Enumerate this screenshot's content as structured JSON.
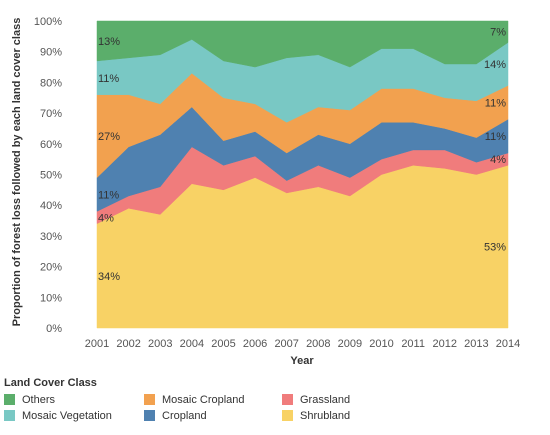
{
  "chart_data": {
    "type": "area",
    "stacked": true,
    "xlabel": "Year",
    "ylabel": "Proportion of forest loss followed by each land cover class",
    "ylim": [
      0,
      100
    ],
    "yticks": [
      "0%",
      "10%",
      "20%",
      "30%",
      "40%",
      "50%",
      "60%",
      "70%",
      "80%",
      "90%",
      "100%"
    ],
    "x": [
      "2001",
      "2002",
      "2003",
      "2004",
      "2005",
      "2006",
      "2007",
      "2008",
      "2009",
      "2010",
      "2011",
      "2012",
      "2013",
      "2014"
    ],
    "series": [
      {
        "name": "Shrubland",
        "color": "#F8D265",
        "values": [
          34,
          39,
          37,
          47,
          45,
          49,
          44,
          46,
          43,
          50,
          53,
          52,
          50,
          53
        ]
      },
      {
        "name": "Grassland",
        "color": "#F07C7C",
        "values": [
          4,
          4,
          9,
          12,
          8,
          7,
          4,
          7,
          6,
          5,
          5,
          6,
          4,
          4
        ]
      },
      {
        "name": "Cropland",
        "color": "#4F81B0",
        "values": [
          11,
          16,
          17,
          13,
          8,
          8,
          9,
          10,
          11,
          12,
          9,
          7,
          8,
          11
        ]
      },
      {
        "name": "Mosaic Cropland",
        "color": "#F2A14F",
        "values": [
          27,
          17,
          10,
          11,
          14,
          9,
          10,
          9,
          11,
          11,
          11,
          10,
          12,
          11
        ]
      },
      {
        "name": "Mosaic Vegetation",
        "color": "#79C8C4",
        "values": [
          11,
          12,
          16,
          11,
          12,
          12,
          21,
          17,
          14,
          13,
          13,
          11,
          12,
          14
        ]
      },
      {
        "name": "Others",
        "color": "#5BAE6B",
        "values": [
          13,
          12,
          11,
          6,
          13,
          15,
          12,
          11,
          15,
          9,
          9,
          14,
          14,
          7
        ]
      }
    ],
    "data_labels": [
      {
        "series": "Shrubland",
        "index": 0,
        "text": "34%"
      },
      {
        "series": "Grassland",
        "index": 0,
        "text": "4%"
      },
      {
        "series": "Cropland",
        "index": 0,
        "text": "11%"
      },
      {
        "series": "Mosaic Cropland",
        "index": 0,
        "text": "27%"
      },
      {
        "series": "Mosaic Vegetation",
        "index": 0,
        "text": "11%"
      },
      {
        "series": "Others",
        "index": 0,
        "text": "13%"
      },
      {
        "series": "Shrubland",
        "index": 13,
        "text": "53%"
      },
      {
        "series": "Grassland",
        "index": 13,
        "text": "4%"
      },
      {
        "series": "Cropland",
        "index": 13,
        "text": "11%"
      },
      {
        "series": "Mosaic Cropland",
        "index": 13,
        "text": "11%"
      },
      {
        "series": "Mosaic Vegetation",
        "index": 13,
        "text": "14%"
      },
      {
        "series": "Others",
        "index": 13,
        "text": "7%"
      }
    ]
  },
  "legend": {
    "title": "Land Cover Class",
    "items": [
      {
        "name": "Others",
        "color": "#5BAE6B"
      },
      {
        "name": "Mosaic Cropland",
        "color": "#F2A14F"
      },
      {
        "name": "Grassland",
        "color": "#F07C7C"
      },
      {
        "name": "Mosaic Vegetation",
        "color": "#79C8C4"
      },
      {
        "name": "Cropland",
        "color": "#4F81B0"
      },
      {
        "name": "Shrubland",
        "color": "#F8D265"
      }
    ]
  }
}
